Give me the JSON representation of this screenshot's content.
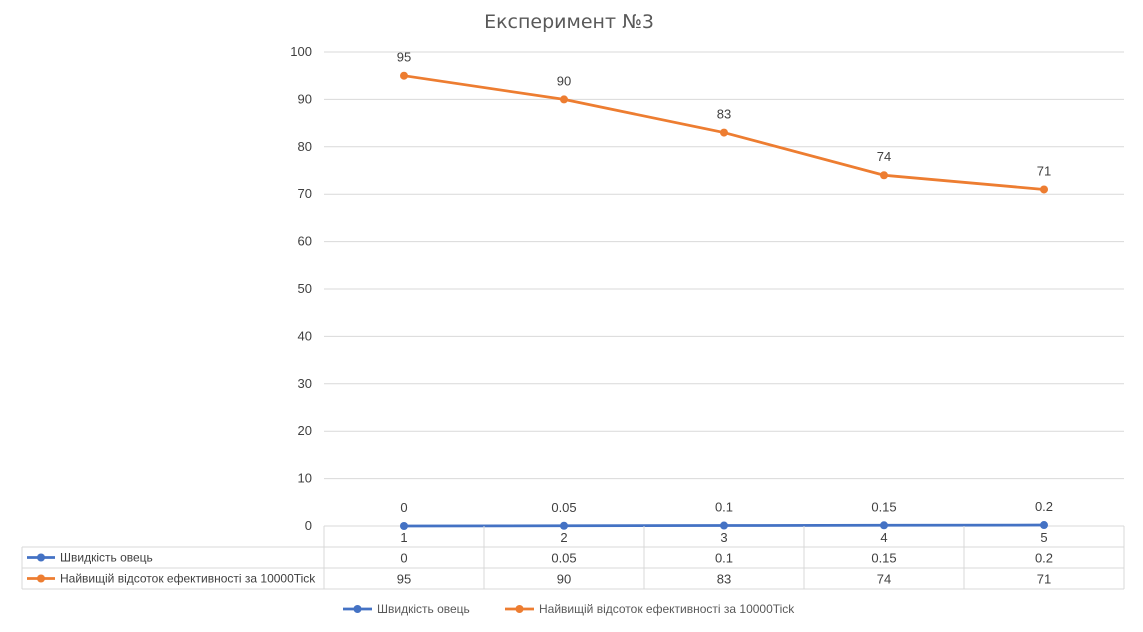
{
  "chart_data": {
    "type": "line",
    "title": "Експеримент №3",
    "categories": [
      "1",
      "2",
      "3",
      "4",
      "5"
    ],
    "ylim": [
      0,
      100
    ],
    "yticks": [
      0,
      10,
      20,
      30,
      40,
      50,
      60,
      70,
      80,
      90,
      100
    ],
    "grid": true,
    "legend_position": "bottom",
    "data_table": true,
    "series": [
      {
        "name": "Швидкість овець",
        "values": [
          0,
          0.05,
          0.1,
          0.15,
          0.2
        ],
        "color": "#4472C4"
      },
      {
        "name": "Найвищій відсоток ефективності за 10000Tick",
        "values": [
          95,
          90,
          83,
          74,
          71
        ],
        "color": "#ED7D31"
      }
    ]
  }
}
